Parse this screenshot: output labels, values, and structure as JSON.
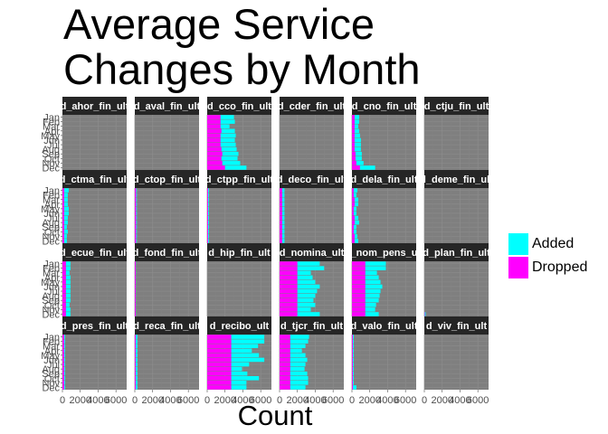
{
  "chart_data": {
    "type": "bar",
    "orientation": "horizontal",
    "stacked": true,
    "faceted": true,
    "title": "Average Service Changes by Month",
    "xlabel": "Count",
    "ylabel": "",
    "xlim": [
      0,
      7200
    ],
    "x_tick_values": [
      0,
      2000,
      4000,
      6000
    ],
    "x_tick_labels": [
      "0",
      "2000",
      "4000",
      "6000"
    ],
    "months": [
      "Jan",
      "Feb",
      "Mar",
      "Apr",
      "May",
      "Jun",
      "Jul",
      "Aug",
      "Sep",
      "Oct",
      "Nov",
      "Dec"
    ],
    "legend": {
      "position": "right",
      "entries": [
        {
          "name": "Added",
          "color": "#00FFFF"
        },
        {
          "name": "Dropped",
          "color": "#FF00FF"
        }
      ]
    },
    "panel_background": "#7F7F7F",
    "strip_background": "#262626",
    "grid": true,
    "panels": [
      {
        "label": "d_ahor_fin_ult",
        "dropped": [
          0,
          0,
          0,
          0,
          0,
          0,
          0,
          0,
          0,
          0,
          0,
          0
        ],
        "added": [
          0,
          0,
          0,
          0,
          0,
          0,
          0,
          0,
          0,
          0,
          0,
          0
        ]
      },
      {
        "label": "d_aval_fin_ult",
        "dropped": [
          0,
          0,
          0,
          0,
          0,
          0,
          0,
          0,
          0,
          0,
          0,
          0
        ],
        "added": [
          0,
          0,
          0,
          0,
          0,
          0,
          0,
          0,
          0,
          0,
          0,
          0
        ]
      },
      {
        "label": "d_cco_fin_ult",
        "dropped": [
          1500,
          1500,
          1500,
          1600,
          1500,
          1500,
          1500,
          1600,
          1700,
          1600,
          1700,
          2000
        ],
        "added": [
          1500,
          1600,
          1000,
          1500,
          1700,
          1600,
          1700,
          1700,
          1800,
          1800,
          2000,
          2400
        ]
      },
      {
        "label": "d_cder_fin_ult",
        "dropped": [
          0,
          0,
          0,
          0,
          0,
          0,
          0,
          0,
          0,
          0,
          0,
          0
        ],
        "added": [
          0,
          0,
          0,
          0,
          0,
          0,
          0,
          0,
          0,
          0,
          0,
          0
        ]
      },
      {
        "label": "d_cno_fin_ult",
        "dropped": [
          300,
          300,
          300,
          300,
          300,
          300,
          300,
          300,
          400,
          400,
          500,
          900
        ],
        "added": [
          500,
          500,
          400,
          500,
          600,
          700,
          700,
          700,
          700,
          700,
          800,
          1700
        ]
      },
      {
        "label": "d_ctju_fin_ult",
        "dropped": [
          0,
          0,
          0,
          0,
          0,
          0,
          0,
          0,
          0,
          0,
          0,
          0
        ],
        "added": [
          0,
          0,
          0,
          0,
          0,
          0,
          0,
          0,
          0,
          0,
          0,
          0
        ]
      },
      {
        "label": "d_ctma_fin_ult",
        "dropped": [
          200,
          200,
          200,
          200,
          200,
          200,
          200,
          200,
          200,
          200,
          200,
          200
        ],
        "added": [
          500,
          400,
          400,
          400,
          500,
          500,
          400,
          400,
          300,
          400,
          300,
          300
        ]
      },
      {
        "label": "d_ctop_fin_ult",
        "dropped": [
          150,
          150,
          150,
          150,
          150,
          150,
          150,
          150,
          150,
          150,
          150,
          150
        ],
        "added": [
          80,
          80,
          80,
          80,
          80,
          80,
          80,
          80,
          80,
          80,
          80,
          80
        ]
      },
      {
        "label": "d_ctpp_fin_ult",
        "dropped": [
          100,
          100,
          100,
          100,
          100,
          100,
          100,
          100,
          100,
          100,
          100,
          100
        ],
        "added": [
          100,
          100,
          100,
          100,
          100,
          100,
          100,
          100,
          100,
          100,
          100,
          100
        ]
      },
      {
        "label": "d_deco_fin_ult",
        "dropped": [
          300,
          300,
          300,
          300,
          300,
          300,
          300,
          300,
          300,
          300,
          300,
          300
        ],
        "added": [
          250,
          250,
          250,
          250,
          250,
          250,
          250,
          250,
          250,
          250,
          250,
          250
        ]
      },
      {
        "label": "d_dela_fin_ult",
        "dropped": [
          200,
          200,
          300,
          300,
          200,
          200,
          300,
          300,
          200,
          200,
          300,
          300
        ],
        "added": [
          400,
          300,
          400,
          400,
          300,
          300,
          400,
          500,
          300,
          300,
          300,
          400
        ]
      },
      {
        "label": "d_deme_fin_ult",
        "dropped": [
          0,
          0,
          0,
          0,
          0,
          0,
          0,
          0,
          0,
          0,
          0,
          0
        ],
        "added": [
          0,
          0,
          0,
          0,
          0,
          0,
          0,
          0,
          0,
          0,
          0,
          0
        ]
      },
      {
        "label": "d_ecue_fin_ult",
        "dropped": [
          400,
          400,
          400,
          400,
          400,
          400,
          400,
          400,
          400,
          400,
          400,
          400
        ],
        "added": [
          500,
          500,
          400,
          500,
          500,
          500,
          500,
          500,
          500,
          400,
          500,
          500
        ]
      },
      {
        "label": "d_fond_fin_ult",
        "dropped": [
          100,
          100,
          100,
          100,
          100,
          100,
          100,
          100,
          100,
          100,
          100,
          100
        ],
        "added": [
          20,
          20,
          20,
          20,
          20,
          20,
          20,
          20,
          20,
          20,
          20,
          20
        ]
      },
      {
        "label": "d_hip_fin_ult",
        "dropped": [
          0,
          0,
          0,
          0,
          0,
          0,
          0,
          0,
          0,
          0,
          0,
          0
        ],
        "added": [
          0,
          0,
          0,
          0,
          0,
          0,
          0,
          0,
          0,
          0,
          0,
          0
        ]
      },
      {
        "label": "d_nomina_ult",
        "dropped": [
          2000,
          2000,
          2000,
          2000,
          2000,
          2000,
          2000,
          2000,
          2000,
          2000,
          2000,
          2000
        ],
        "added": [
          2500,
          3000,
          1500,
          1700,
          2000,
          2500,
          2200,
          2000,
          1800,
          2000,
          1500,
          2500
        ]
      },
      {
        "label": "d_nom_pens_ult",
        "dropped": [
          1500,
          1500,
          1500,
          1500,
          1500,
          1500,
          1500,
          1500,
          1500,
          1500,
          1500,
          1500
        ],
        "added": [
          2300,
          2300,
          1300,
          1500,
          1700,
          1900,
          1700,
          1600,
          1500,
          1200,
          1100,
          1500
        ]
      },
      {
        "label": "d_plan_fin_ult",
        "dropped": [
          0,
          0,
          0,
          0,
          0,
          0,
          0,
          0,
          0,
          0,
          0,
          50
        ],
        "added": [
          0,
          0,
          0,
          0,
          0,
          0,
          0,
          0,
          0,
          0,
          0,
          100
        ]
      },
      {
        "label": "d_pres_fin_ult",
        "dropped": [
          200,
          200,
          200,
          200,
          200,
          200,
          200,
          200,
          200,
          200,
          200,
          200
        ],
        "added": [
          100,
          100,
          100,
          100,
          100,
          100,
          100,
          100,
          100,
          100,
          100,
          100
        ]
      },
      {
        "label": "d_reca_fin_ult",
        "dropped": [
          100,
          100,
          100,
          100,
          100,
          100,
          100,
          100,
          100,
          100,
          100,
          100
        ],
        "added": [
          200,
          200,
          200,
          200,
          200,
          200,
          200,
          200,
          200,
          200,
          200,
          200
        ]
      },
      {
        "label": "d_recibo_ult",
        "dropped": [
          2700,
          2700,
          2700,
          2700,
          2700,
          2700,
          2700,
          2700,
          2700,
          2700,
          2700,
          2700
        ],
        "added": [
          3700,
          3700,
          3000,
          2300,
          3100,
          3700,
          2000,
          1200,
          1800,
          3100,
          1700,
          1700
        ]
      },
      {
        "label": "d_tjcr_fin_ult",
        "dropped": [
          1200,
          1200,
          1200,
          1200,
          1200,
          1200,
          1200,
          1200,
          1200,
          1200,
          1200,
          1200
        ],
        "added": [
          2100,
          2000,
          1700,
          1300,
          1700,
          1900,
          1700,
          1600,
          1900,
          2000,
          2000,
          1700
        ]
      },
      {
        "label": "d_valo_fin_ult",
        "dropped": [
          100,
          100,
          100,
          100,
          100,
          100,
          100,
          100,
          100,
          100,
          100,
          100
        ],
        "added": [
          100,
          100,
          100,
          100,
          100,
          100,
          100,
          100,
          100,
          100,
          100,
          400
        ]
      },
      {
        "label": "d_viv_fin_ult",
        "dropped": [
          0,
          0,
          0,
          0,
          0,
          0,
          0,
          0,
          0,
          0,
          0,
          0
        ],
        "added": [
          0,
          0,
          0,
          0,
          0,
          0,
          0,
          0,
          0,
          0,
          0,
          0
        ]
      }
    ]
  }
}
